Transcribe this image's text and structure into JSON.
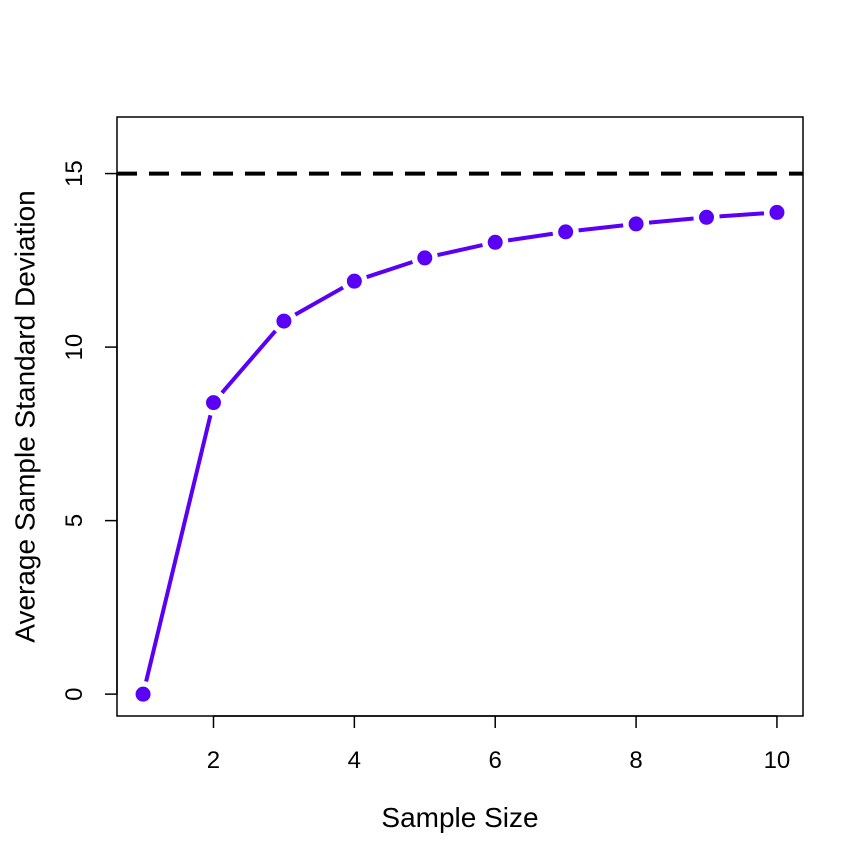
{
  "chart_data": {
    "type": "line",
    "title": "",
    "xlabel": "Sample Size",
    "ylabel": "Average Sample Standard Deviation",
    "xlim": [
      0.63,
      10.37
    ],
    "ylim": [
      -0.63,
      16.63
    ],
    "x_ticks": [
      2,
      4,
      6,
      8,
      10
    ],
    "y_ticks": [
      0,
      5,
      10,
      15
    ],
    "grid": false,
    "legend": "none",
    "series": [
      {
        "color": "#5a00f5",
        "marker": "circle",
        "x": [
          1,
          2,
          3,
          4,
          5,
          6,
          7,
          8,
          9,
          10
        ],
        "values": [
          0.0,
          8.4,
          10.75,
          11.9,
          12.57,
          13.02,
          13.32,
          13.55,
          13.74,
          13.88
        ]
      }
    ],
    "reference_line": {
      "y": 15,
      "style": "dashed",
      "color": "#000000"
    }
  }
}
